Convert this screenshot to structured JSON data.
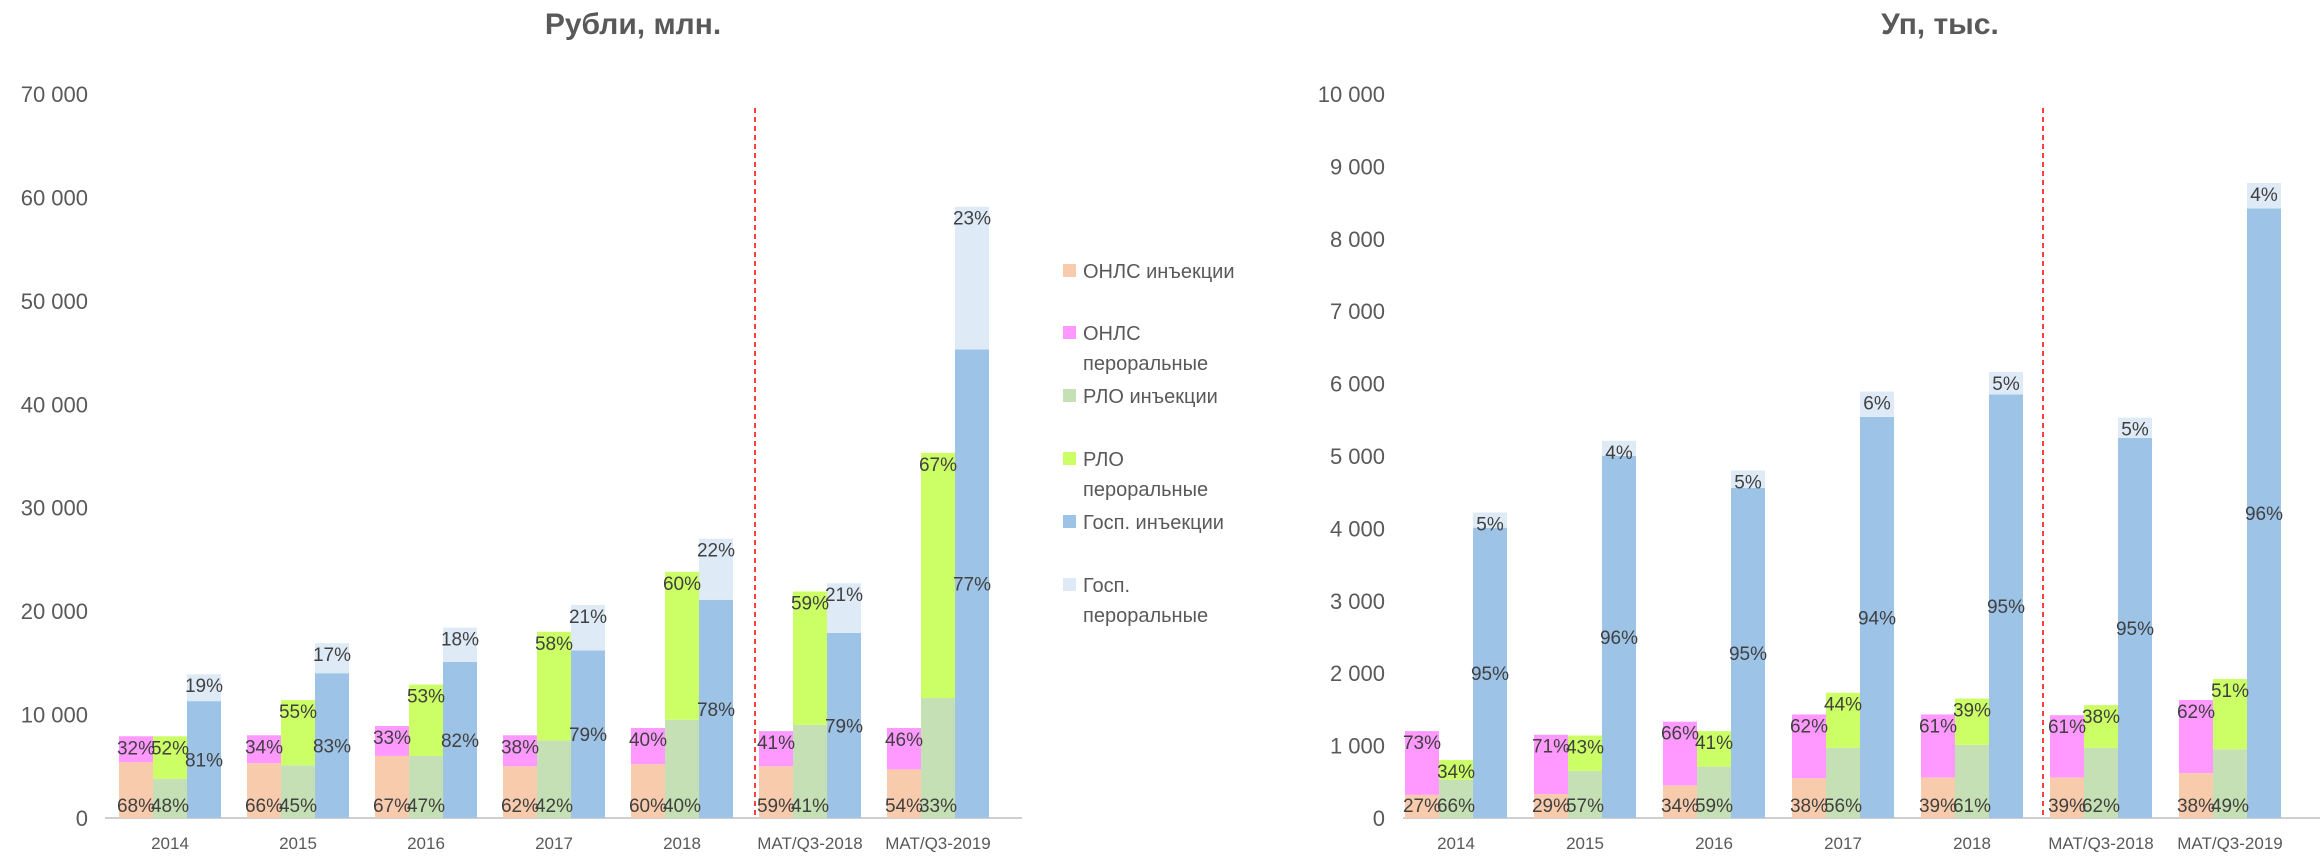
{
  "colors": {
    "onls_inj": "#F8CBAD",
    "onls_oral": "#FF99FF",
    "rlo_inj": "#C5E0B4",
    "rlo_oral": "#CCFF66",
    "gos_inj": "#9DC3E6",
    "gos_oral": "#DEEBF7",
    "divider": "#FF0000",
    "axis": "#BFBFBF"
  },
  "legend": {
    "items": [
      {
        "key": "onls_inj",
        "lines": [
          "ОНЛС инъекции"
        ]
      },
      {
        "key": "onls_oral",
        "lines": [
          "ОНЛС",
          "пероральные"
        ]
      },
      {
        "key": "rlo_inj",
        "lines": [
          "РЛО инъекции"
        ]
      },
      {
        "key": "rlo_oral",
        "lines": [
          "РЛО",
          "пероральные"
        ]
      },
      {
        "key": "gos_inj",
        "lines": [
          "Госп. инъекции"
        ]
      },
      {
        "key": "gos_oral",
        "lines": [
          "Госп.",
          "пероральные"
        ]
      }
    ]
  },
  "chart_data": [
    {
      "type": "bar",
      "stacked": "grouped-stacked",
      "title": "Рубли, млн.",
      "categories": [
        "2014",
        "2015",
        "2016",
        "2017",
        "2018",
        "MAT/Q3-2018",
        "MAT/Q3-2019"
      ],
      "ylim": [
        0,
        70000
      ],
      "yticks": [
        "0",
        "10 000",
        "20 000",
        "30 000",
        "40 000",
        "50 000",
        "60 000",
        "70 000"
      ],
      "ytick_values": [
        0,
        10000,
        20000,
        30000,
        40000,
        50000,
        60000,
        70000
      ],
      "divider_after_category": 4,
      "groups": [
        {
          "name": "ОНЛС",
          "segments": [
            {
              "series": "onls_inj",
              "values": [
                5400,
                5300,
                6000,
                5000,
                5200,
                5000,
                4700
              ],
              "labels": [
                "68%",
                "66%",
                "67%",
                "62%",
                "60%",
                "59%",
                "54%"
              ]
            },
            {
              "series": "onls_oral",
              "values": [
                2500,
                2700,
                2900,
                3000,
                3500,
                3400,
                4000
              ],
              "labels": [
                "32%",
                "34%",
                "33%",
                "38%",
                "40%",
                "41%",
                "46%"
              ]
            }
          ]
        },
        {
          "name": "РЛО",
          "segments": [
            {
              "series": "rlo_inj",
              "values": [
                3800,
                5100,
                6000,
                7500,
                9500,
                9000,
                11600
              ],
              "labels": [
                "48%",
                "45%",
                "47%",
                "42%",
                "40%",
                "41%",
                "33%"
              ]
            },
            {
              "series": "rlo_oral",
              "values": [
                4100,
                6300,
                6900,
                10500,
                14300,
                12900,
                23700
              ],
              "labels": [
                "52%",
                "55%",
                "53%",
                "58%",
                "60%",
                "59%",
                "67%"
              ]
            }
          ]
        },
        {
          "name": "Госп.",
          "segments": [
            {
              "series": "gos_inj",
              "values": [
                11300,
                14000,
                15100,
                16200,
                21100,
                17900,
                45300
              ],
              "labels": [
                "81%",
                "83%",
                "82%",
                "79%",
                "78%",
                "79%",
                "77%"
              ]
            },
            {
              "series": "gos_oral",
              "values": [
                2600,
                2900,
                3300,
                4400,
                5900,
                4800,
                13800
              ],
              "labels": [
                "19%",
                "17%",
                "18%",
                "21%",
                "22%",
                "21%",
                "23%"
              ]
            }
          ]
        }
      ]
    },
    {
      "type": "bar",
      "stacked": "grouped-stacked",
      "title": "Уп, тыс.",
      "categories": [
        "2014",
        "2015",
        "2016",
        "2017",
        "2018",
        "MAT/Q3-2018",
        "MAT/Q3-2019"
      ],
      "ylim": [
        0,
        10000
      ],
      "yticks": [
        "0",
        "1 000",
        "2 000",
        "3 000",
        "4 000",
        "5 000",
        "6 000",
        "7 000",
        "8 000",
        "9 000",
        "10 000"
      ],
      "ytick_values": [
        0,
        1000,
        2000,
        3000,
        4000,
        5000,
        6000,
        7000,
        8000,
        9000,
        10000
      ],
      "divider_after_category": 4,
      "groups": [
        {
          "name": "ОНЛС",
          "segments": [
            {
              "series": "onls_inj",
              "values": [
                320,
                330,
                450,
                550,
                560,
                560,
                620
              ],
              "labels": [
                "27%",
                "29%",
                "34%",
                "38%",
                "39%",
                "39%",
                "38%"
              ]
            },
            {
              "series": "onls_oral",
              "values": [
                880,
                820,
                880,
                880,
                870,
                860,
                1010
              ],
              "labels": [
                "73%",
                "71%",
                "66%",
                "62%",
                "61%",
                "61%",
                "62%"
              ]
            }
          ]
        },
        {
          "name": "РЛО",
          "segments": [
            {
              "series": "rlo_inj",
              "values": [
                530,
                650,
                710,
                970,
                1010,
                970,
                950
              ],
              "labels": [
                "66%",
                "57%",
                "59%",
                "56%",
                "61%",
                "62%",
                "49%"
              ]
            },
            {
              "series": "rlo_oral",
              "values": [
                270,
                490,
                490,
                760,
                640,
                590,
                970
              ],
              "labels": [
                "34%",
                "43%",
                "41%",
                "44%",
                "39%",
                "38%",
                "51%"
              ]
            }
          ]
        },
        {
          "name": "Госп.",
          "segments": [
            {
              "series": "gos_inj",
              "values": [
                4010,
                5000,
                4560,
                5540,
                5850,
                5250,
                8420
              ],
              "labels": [
                "95%",
                "96%",
                "95%",
                "94%",
                "95%",
                "95%",
                "96%"
              ]
            },
            {
              "series": "gos_oral",
              "values": [
                210,
                210,
                240,
                350,
                310,
                280,
                350
              ],
              "labels": [
                "5%",
                "4%",
                "5%",
                "6%",
                "5%",
                "5%",
                "4%"
              ]
            }
          ]
        }
      ]
    }
  ]
}
